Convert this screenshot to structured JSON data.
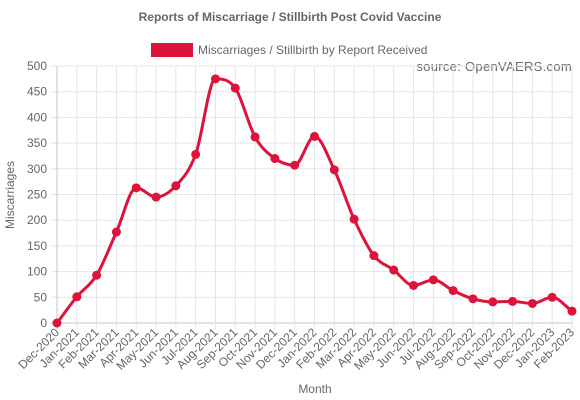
{
  "chart_data": {
    "type": "line",
    "title": "Reports of Miscarriage / Stillbirth Post Covid Vaccine",
    "source": "source: OpenVAERS.com",
    "xlabel": "Month",
    "ylabel": "Miscarriages",
    "ylim": [
      0,
      500
    ],
    "y_ticks": [
      0,
      50,
      100,
      150,
      200,
      250,
      300,
      350,
      400,
      450,
      500
    ],
    "grid": true,
    "legend_position": "top",
    "categories": [
      "Dec-2020",
      "Jan-2021",
      "Feb-2021",
      "Mar-2021",
      "Apr-2021",
      "May-2021",
      "Jun-2021",
      "Jul-2021",
      "Aug-2021",
      "Sep-2021",
      "Oct-2021",
      "Nov-2021",
      "Dec-2021",
      "Jan-2022",
      "Feb-2022",
      "Mar-2022",
      "Apr-2022",
      "May-2022",
      "Jun-2022",
      "Jul-2022",
      "Aug-2022",
      "Sep-2022",
      "Oct-2022",
      "Nov-2022",
      "Dec-2022",
      "Jan-2023",
      "Feb-2023"
    ],
    "series": [
      {
        "name": "Miscarriages / Stillbirth by Report Received",
        "color": "#dc143c",
        "values": [
          0,
          51,
          93,
          177,
          263,
          245,
          267,
          328,
          475,
          457,
          362,
          320,
          307,
          363,
          298,
          202,
          131,
          103,
          73,
          84,
          63,
          47,
          41,
          42,
          38,
          50,
          23
        ]
      }
    ]
  }
}
